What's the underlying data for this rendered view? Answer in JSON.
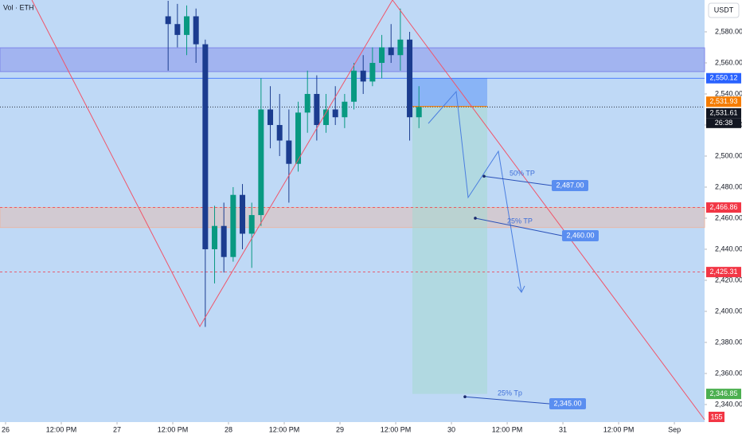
{
  "chart_data": {
    "type": "candlestick",
    "header": "Vol · ETH",
    "currency": "USDT",
    "x": [
      34,
      36,
      38,
      40,
      42,
      44,
      46,
      48,
      50,
      52,
      54,
      56,
      58,
      60,
      62,
      64,
      66,
      68,
      70,
      72,
      74,
      76,
      78,
      80,
      82,
      84,
      86,
      88
    ],
    "open": [
      2590,
      2585,
      2578,
      2590,
      2572,
      2440,
      2455,
      2435,
      2475,
      2450,
      2462,
      2530,
      2520,
      2510,
      2495,
      2528,
      2540,
      2520,
      2530,
      2525,
      2535,
      2555,
      2548,
      2560,
      2570,
      2565,
      2575,
      2525
    ],
    "high": [
      2600,
      2598,
      2597,
      2595,
      2575,
      2468,
      2470,
      2480,
      2482,
      2470,
      2550,
      2545,
      2540,
      2530,
      2535,
      2555,
      2552,
      2540,
      2545,
      2540,
      2560,
      2565,
      2570,
      2578,
      2585,
      2595,
      2580,
      2545
    ],
    "low": [
      2555,
      2570,
      2565,
      2560,
      2390,
      2418,
      2425,
      2432,
      2440,
      2428,
      2455,
      2505,
      2500,
      2470,
      2490,
      2515,
      2510,
      2515,
      2520,
      2518,
      2530,
      2540,
      2545,
      2550,
      2560,
      2555,
      2510,
      2518
    ],
    "close": [
      2585,
      2578,
      2590,
      2572,
      2440,
      2455,
      2435,
      2475,
      2450,
      2462,
      2530,
      2520,
      2510,
      2495,
      2528,
      2540,
      2520,
      2530,
      2525,
      2535,
      2555,
      2548,
      2560,
      2570,
      2565,
      2575,
      2525,
      2531.61
    ],
    "up_color": "#089981",
    "down_color": "#1b3c8f",
    "xlim": [
      -1.2,
      150.5
    ],
    "xticks": [
      {
        "value": 0,
        "label": "26"
      },
      {
        "value": 12,
        "label": "12:00 PM"
      },
      {
        "value": 24,
        "label": "27"
      },
      {
        "value": 36,
        "label": "12:00 PM"
      },
      {
        "value": 48,
        "label": "28"
      },
      {
        "value": 60,
        "label": "12:00 PM"
      },
      {
        "value": 72,
        "label": "29"
      },
      {
        "value": 84,
        "label": "12:00 PM"
      },
      {
        "value": 96,
        "label": "30"
      },
      {
        "value": 108,
        "label": "12:00 PM"
      },
      {
        "value": 120,
        "label": "31"
      },
      {
        "value": 132,
        "label": "12:00 PM"
      },
      {
        "value": 144,
        "label": "Sep"
      }
    ],
    "ylim": [
      2328.7,
      2600.5
    ],
    "yticks": [
      {
        "value": 2580,
        "label": "2,580.00"
      },
      {
        "value": 2560,
        "label": "2,560.00"
      },
      {
        "value": 2540,
        "label": "2,540.00"
      },
      {
        "value": 2520,
        "label": "2,520.00"
      },
      {
        "value": 2500,
        "label": "2,500.00"
      },
      {
        "value": 2480,
        "label": "2,480.00"
      },
      {
        "value": 2460,
        "label": "2,460.00"
      },
      {
        "value": 2440,
        "label": "2,440.00"
      },
      {
        "value": 2420,
        "label": "2,420.00"
      },
      {
        "value": 2400,
        "label": "2,400.00"
      },
      {
        "value": 2380,
        "label": "2,380.00"
      },
      {
        "value": 2360,
        "label": "2,360.00"
      },
      {
        "value": 2340,
        "label": "2,340.00"
      }
    ],
    "zones": [
      {
        "from": 2554.4,
        "to": 2569.7,
        "color": "#7f87e8"
      },
      {
        "from": 2454,
        "to": 2466.86,
        "color": "#e8b7a6"
      }
    ],
    "position": {
      "entry": 2531.93,
      "stop": 2550.12,
      "target": 2346.85
    },
    "price_lines": [
      {
        "value": 2550.12,
        "label": "2,550.12",
        "color": "#2962ff",
        "style": "solid"
      },
      {
        "value": 2531.93,
        "label": "2,531.93",
        "color": "#f57c00",
        "style": "none"
      },
      {
        "value": 2531.61,
        "label": "2,531.61",
        "color": "#131722",
        "style": "dotted"
      },
      {
        "value": 2466.86,
        "label": "2,466.86",
        "color": "#f23645",
        "style": "dashed"
      },
      {
        "value": 2425.31,
        "label": "2,425.31",
        "color": "#f23645",
        "style": "dashed"
      },
      {
        "value": 2346.85,
        "label": "2,346.85",
        "color": "#4caf50",
        "style": "none"
      }
    ],
    "countdown": "26:38",
    "bottom_tag": "155",
    "targets": [
      {
        "name": "50% TP",
        "value": 2487,
        "label": "2,487.00"
      },
      {
        "name": "25% TP",
        "value": 2460,
        "label": "2,460.00"
      },
      {
        "name": "25% Tp",
        "value": 2345,
        "label": "2,345.00"
      }
    ]
  }
}
